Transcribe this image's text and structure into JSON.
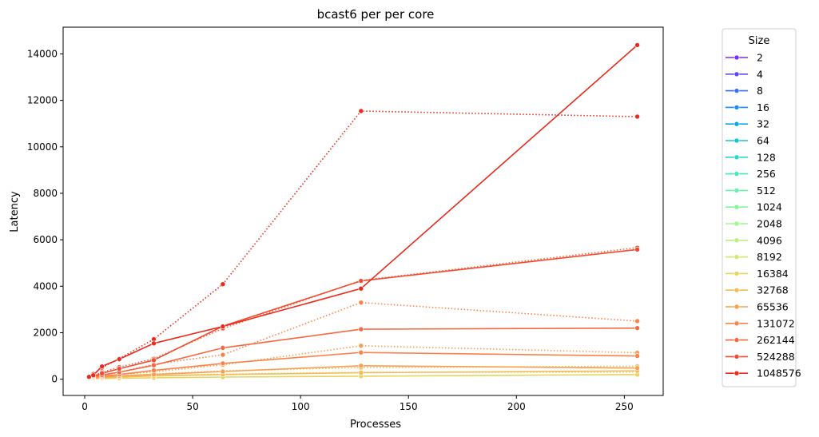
{
  "chart_data": {
    "type": "line",
    "title": "bcast6 per per core",
    "xlabel": "Processes",
    "ylabel": "Latency",
    "xlim": [
      -10,
      268
    ],
    "ylim": [
      -700,
      15150
    ],
    "xticks": [
      0,
      50,
      100,
      150,
      200,
      250
    ],
    "yticks": [
      0,
      2000,
      4000,
      6000,
      8000,
      10000,
      12000,
      14000
    ],
    "grid": false,
    "legend": {
      "title": "Size",
      "placement": "outside-right"
    },
    "series": [
      {
        "name": "2",
        "color": "#7a2ff0"
      },
      {
        "name": "4",
        "color": "#5a4cf5"
      },
      {
        "name": "8",
        "color": "#3a6ef8"
      },
      {
        "name": "16",
        "color": "#1e8cf0"
      },
      {
        "name": "32",
        "color": "#0aa8e8"
      },
      {
        "name": "64",
        "color": "#14c4dc"
      },
      {
        "name": "128",
        "color": "#2ad8cc"
      },
      {
        "name": "256",
        "color": "#46e8bc"
      },
      {
        "name": "512",
        "color": "#64f2ac"
      },
      {
        "name": "1024",
        "color": "#80f89c"
      },
      {
        "name": "2048",
        "color": "#9cf88c"
      },
      {
        "name": "4096",
        "color": "#b8f27c"
      },
      {
        "name": "8192",
        "color": "#d0e86c"
      },
      {
        "name": "16384",
        "color": "#e4d460",
        "x": [
          2,
          4,
          8,
          16,
          32,
          64,
          128,
          256
        ],
        "values": [
          20,
          25,
          30,
          40,
          60,
          90,
          130,
          200
        ]
      },
      {
        "name": "32768",
        "color": "#f2bc58",
        "x": [
          2,
          4,
          8,
          16,
          32,
          64,
          128,
          256
        ],
        "values": [
          30,
          40,
          60,
          90,
          140,
          200,
          280,
          360
        ]
      },
      {
        "name": "65536",
        "color": "#f8a050",
        "x": [
          2,
          4,
          8,
          16,
          32,
          64,
          128,
          256
        ],
        "values": [
          40,
          60,
          90,
          140,
          200,
          330,
          580,
          480
        ]
      },
      {
        "name": "131072",
        "color": "#fa8448",
        "x": [
          2,
          4,
          8,
          16,
          32,
          64,
          128,
          256
        ],
        "values": [
          60,
          90,
          130,
          200,
          380,
          680,
          1150,
          1000
        ]
      },
      {
        "name": "262144",
        "color": "#f86840",
        "x": [
          2,
          4,
          8,
          16,
          32,
          64,
          128,
          256
        ],
        "values": [
          80,
          120,
          180,
          300,
          600,
          1350,
          2150,
          2200
        ]
      },
      {
        "name": "524288",
        "color": "#f24a30",
        "x": [
          2,
          4,
          8,
          16,
          32,
          64,
          128,
          256
        ],
        "values": [
          90,
          140,
          250,
          450,
          820,
          2280,
          4230,
          5580
        ]
      },
      {
        "name": "1048576",
        "color": "#ea2a1c",
        "x": [
          2,
          4,
          8,
          16,
          32,
          64,
          128,
          256
        ],
        "values": [
          100,
          170,
          550,
          860,
          1540,
          2270,
          3900,
          14380
        ]
      }
    ],
    "dotted_series": [
      {
        "color": "#e4d460",
        "x": [
          2,
          4,
          8,
          16,
          32,
          64,
          128,
          256
        ],
        "values": [
          30,
          40,
          60,
          100,
          150,
          220,
          300,
          300
        ]
      },
      {
        "color": "#f2bc58",
        "x": [
          2,
          4,
          8,
          16,
          32,
          64,
          128,
          256
        ],
        "values": [
          40,
          60,
          90,
          140,
          220,
          360,
          500,
          560
        ]
      },
      {
        "color": "#f8a050",
        "x": [
          2,
          4,
          8,
          16,
          32,
          64,
          128,
          256
        ],
        "values": [
          50,
          80,
          120,
          200,
          320,
          620,
          1440,
          1140
        ]
      },
      {
        "color": "#fa8448",
        "x": [
          2,
          4,
          8,
          16,
          32,
          64,
          128,
          256
        ],
        "values": [
          70,
          110,
          180,
          300,
          640,
          1050,
          3300,
          2500
        ]
      },
      {
        "color": "#f86840",
        "x": [
          2,
          4,
          8,
          16,
          32,
          64,
          128,
          256
        ],
        "values": [
          90,
          150,
          300,
          520,
          880,
          2180,
          4250,
          5660
        ]
      },
      {
        "color": "#ea2a1c",
        "x": [
          2,
          4,
          8,
          16,
          32,
          64,
          128,
          256
        ],
        "values": [
          110,
          220,
          500,
          880,
          1720,
          4090,
          11540,
          11300
        ]
      }
    ]
  }
}
